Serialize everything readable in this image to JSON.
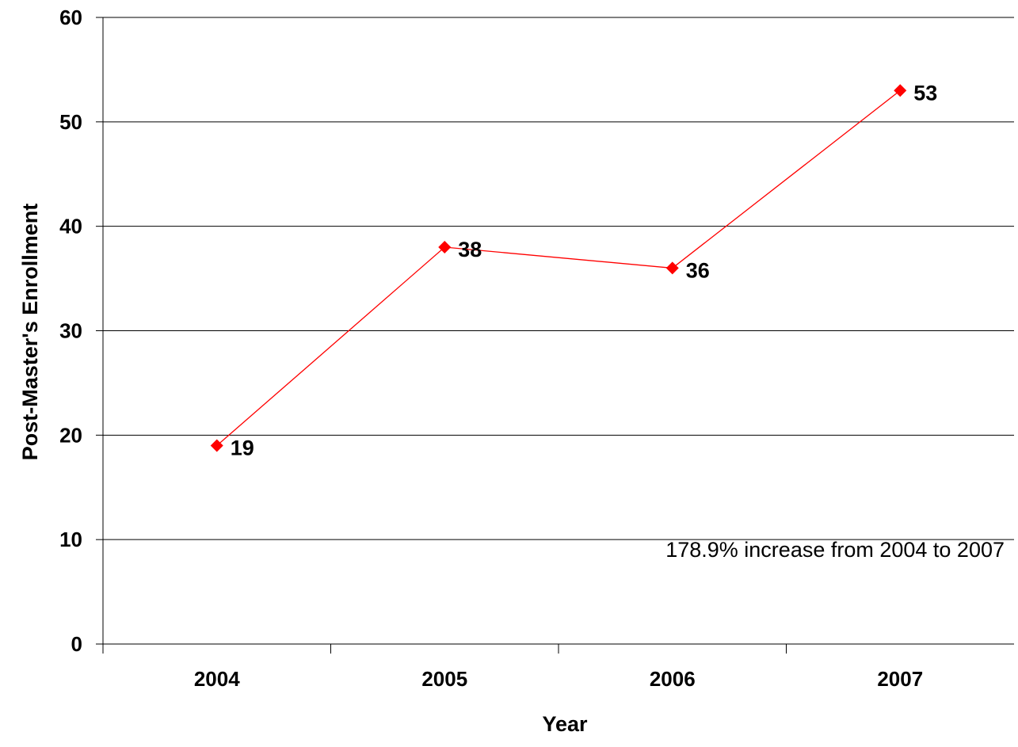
{
  "chart_data": {
    "type": "line",
    "categories": [
      "2004",
      "2005",
      "2006",
      "2007"
    ],
    "series": [
      {
        "values": [
          19,
          38,
          36,
          53
        ],
        "color": "#ff0000"
      }
    ],
    "xlabel": "Year",
    "ylabel": "Post-Master's Enrollment",
    "ylim": [
      0,
      60
    ],
    "yticks": [
      0,
      10,
      20,
      30,
      40,
      50,
      60
    ],
    "grid": true,
    "annotation": "178.9% increase from 2004 to 2007"
  }
}
